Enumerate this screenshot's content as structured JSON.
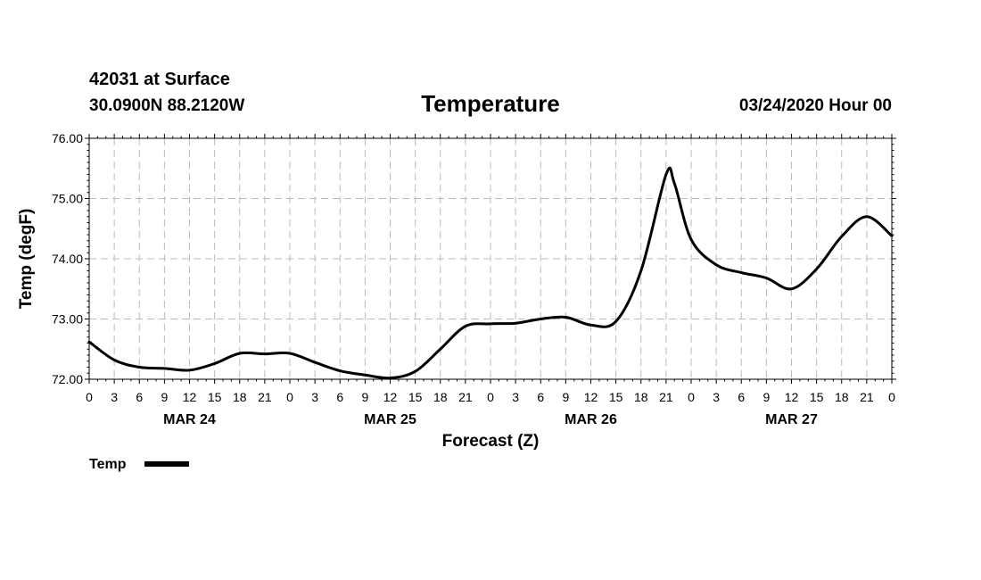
{
  "header": {
    "station": "42031 at Surface",
    "coords": "30.0900N 88.2120W",
    "title": "Temperature",
    "run": "03/24/2020 Hour 00"
  },
  "chart_data": {
    "type": "line",
    "title": "Temperature",
    "xlabel": "Forecast (Z)",
    "ylabel": "Temp (degF)",
    "ylim": [
      72,
      76
    ],
    "xlim_hours": [
      0,
      96
    ],
    "grid": true,
    "legend": "bottom-left",
    "yticks": [
      "72.00",
      "73.00",
      "74.00",
      "75.00",
      "76.00"
    ],
    "xtick_labels": [
      "0",
      "3",
      "6",
      "9",
      "12",
      "15",
      "18",
      "21",
      "0",
      "3",
      "6",
      "9",
      "12",
      "15",
      "18",
      "21",
      "0",
      "3",
      "6",
      "9",
      "12",
      "15",
      "18",
      "21",
      "0",
      "3",
      "6",
      "9",
      "12",
      "15",
      "18",
      "21",
      "0"
    ],
    "days": [
      "MAR 24",
      "MAR 25",
      "MAR 26",
      "MAR 27"
    ],
    "series": [
      {
        "name": "Temp",
        "color": "#000000",
        "x": [
          0,
          3,
          6,
          9,
          12,
          15,
          18,
          21,
          24,
          27,
          30,
          33,
          36,
          39,
          42,
          45,
          48,
          51,
          54,
          57,
          60,
          63,
          66,
          69,
          70,
          72,
          75,
          78,
          81,
          84,
          87,
          90,
          93,
          96
        ],
        "y": [
          72.62,
          72.32,
          72.2,
          72.18,
          72.15,
          72.26,
          72.43,
          72.42,
          72.43,
          72.28,
          72.14,
          72.07,
          72.02,
          72.13,
          72.5,
          72.88,
          72.92,
          72.93,
          73.0,
          73.03,
          72.9,
          72.96,
          73.8,
          75.4,
          75.25,
          74.32,
          73.9,
          73.77,
          73.68,
          73.5,
          73.83,
          74.37,
          74.7,
          74.38
        ]
      }
    ]
  }
}
